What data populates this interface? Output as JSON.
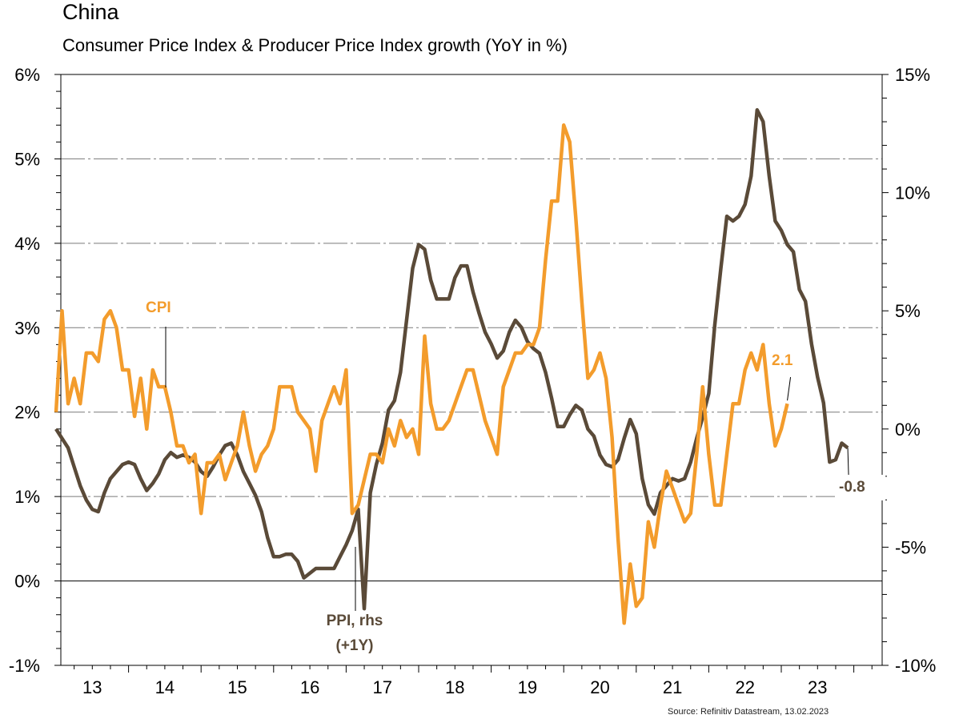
{
  "header": {
    "title": "China",
    "subtitle": "Consumer Price Index & Producer Price Index growth (YoY in %)"
  },
  "footer": {
    "source": "Source: Refinitiv Datastream, 13.02.2023"
  },
  "colors": {
    "cpi": "#F39C2C",
    "ppi": "#5A4A38",
    "grid": "#7a7a7a",
    "axis": "#000000"
  },
  "chart_data": {
    "type": "line",
    "title": "China",
    "subtitle": "Consumer Price Index & Producer Price Index growth (YoY in %)",
    "xlabel": "",
    "ylabel_left": "",
    "ylabel_right": "",
    "x_tick_labels": [
      "13",
      "14",
      "15",
      "16",
      "17",
      "18",
      "19",
      "20",
      "21",
      "22",
      "23"
    ],
    "y_left": {
      "ticks": [
        "6%",
        "5%",
        "4%",
        "3%",
        "2%",
        "1%",
        "0%",
        "-1%"
      ],
      "tick_values": [
        6,
        5,
        4,
        3,
        2,
        1,
        0,
        -1
      ],
      "ylim": [
        -1,
        6
      ]
    },
    "y_right": {
      "ticks": [
        "15%",
        "10%",
        "5%",
        "0%",
        "-5%",
        "-10%"
      ],
      "tick_values": [
        15,
        10,
        5,
        0,
        -5,
        -10
      ],
      "ylim": [
        -10,
        15
      ]
    },
    "x_range_years": [
      2012.9,
      2024.4
    ],
    "grid": "horizontal dashed at left-axis integer percents",
    "legend": "inline labels",
    "annotations": [
      {
        "text": "CPI",
        "series": "CPI"
      },
      {
        "text": "PPI, rhs",
        "series": "PPI"
      },
      {
        "text": "(+1Y)",
        "series": "PPI"
      },
      {
        "text": "2.1",
        "series": "CPI",
        "note": "last value"
      },
      {
        "text": "-0.8",
        "series": "PPI",
        "note": "last value"
      }
    ],
    "series": [
      {
        "name": "CPI",
        "axis": "left",
        "start": "2013-01",
        "frequency": "monthly",
        "values": [
          2.0,
          3.2,
          2.1,
          2.4,
          2.1,
          2.7,
          2.7,
          2.6,
          3.1,
          3.2,
          3.0,
          2.5,
          2.5,
          1.95,
          2.4,
          1.8,
          2.5,
          2.3,
          2.3,
          2.0,
          1.6,
          1.6,
          1.4,
          1.5,
          0.8,
          1.4,
          1.4,
          1.5,
          1.2,
          1.4,
          1.6,
          2.0,
          1.6,
          1.3,
          1.5,
          1.6,
          1.8,
          2.3,
          2.3,
          2.3,
          2.0,
          1.9,
          1.8,
          1.3,
          1.9,
          2.1,
          2.3,
          2.1,
          2.5,
          0.8,
          0.9,
          1.2,
          1.5,
          1.5,
          1.4,
          1.8,
          1.6,
          1.9,
          1.7,
          1.8,
          1.5,
          2.9,
          2.1,
          1.8,
          1.8,
          1.9,
          2.1,
          2.3,
          2.5,
          2.5,
          2.2,
          1.9,
          1.7,
          1.5,
          2.3,
          2.5,
          2.7,
          2.7,
          2.8,
          2.8,
          3.0,
          3.8,
          4.5,
          4.5,
          5.4,
          5.2,
          4.3,
          3.3,
          2.4,
          2.5,
          2.7,
          2.4,
          1.7,
          0.5,
          -0.5,
          0.2,
          -0.3,
          -0.2,
          0.7,
          0.4,
          0.9,
          1.3,
          1.1,
          0.9,
          0.7,
          0.8,
          1.5,
          2.3,
          1.5,
          0.9,
          0.9,
          1.5,
          2.1,
          2.1,
          2.5,
          2.7,
          2.5,
          2.8,
          2.1,
          1.6,
          1.8,
          2.1
        ]
      },
      {
        "name": "PPI, rhs (+1Y)",
        "axis": "right",
        "shift": "+1Y",
        "start": "2013-01",
        "frequency": "monthly",
        "values": [
          0.0,
          -0.4,
          -0.8,
          -1.6,
          -2.4,
          -3.0,
          -3.4,
          -3.5,
          -2.7,
          -2.1,
          -1.8,
          -1.5,
          -1.4,
          -1.5,
          -2.1,
          -2.6,
          -2.3,
          -1.9,
          -1.3,
          -1.0,
          -1.2,
          -1.1,
          -1.2,
          -1.4,
          -1.8,
          -2.0,
          -1.6,
          -1.1,
          -0.7,
          -0.6,
          -1.1,
          -1.8,
          -2.3,
          -2.8,
          -3.5,
          -4.6,
          -5.4,
          -5.4,
          -5.3,
          -5.3,
          -5.6,
          -6.3,
          -6.1,
          -5.9,
          -5.9,
          -5.9,
          -5.9,
          -5.4,
          -4.9,
          -4.3,
          -3.4,
          -7.6,
          -2.7,
          -1.5,
          -0.6,
          0.8,
          1.2,
          2.4,
          4.6,
          6.8,
          7.8,
          7.6,
          6.3,
          5.5,
          5.5,
          5.5,
          6.4,
          6.9,
          6.9,
          5.8,
          4.9,
          4.1,
          3.6,
          3.0,
          3.3,
          4.1,
          4.6,
          4.3,
          3.7,
          3.4,
          3.2,
          2.4,
          1.3,
          0.1,
          0.1,
          0.6,
          1.0,
          0.8,
          0.0,
          -0.3,
          -1.1,
          -1.5,
          -1.6,
          -1.3,
          -0.4,
          0.4,
          -0.2,
          -2.1,
          -3.2,
          -3.6,
          -2.7,
          -2.4,
          -2.1,
          -2.2,
          -2.1,
          -1.4,
          -0.4,
          0.5,
          1.5,
          4.4,
          6.8,
          9.0,
          8.8,
          9.0,
          9.5,
          10.7,
          13.5,
          13.0,
          10.7,
          8.8,
          8.4,
          7.8,
          7.5,
          5.9,
          5.4,
          3.6,
          2.2,
          1.1,
          -1.4,
          -1.3,
          -0.6,
          -0.8
        ]
      }
    ]
  }
}
